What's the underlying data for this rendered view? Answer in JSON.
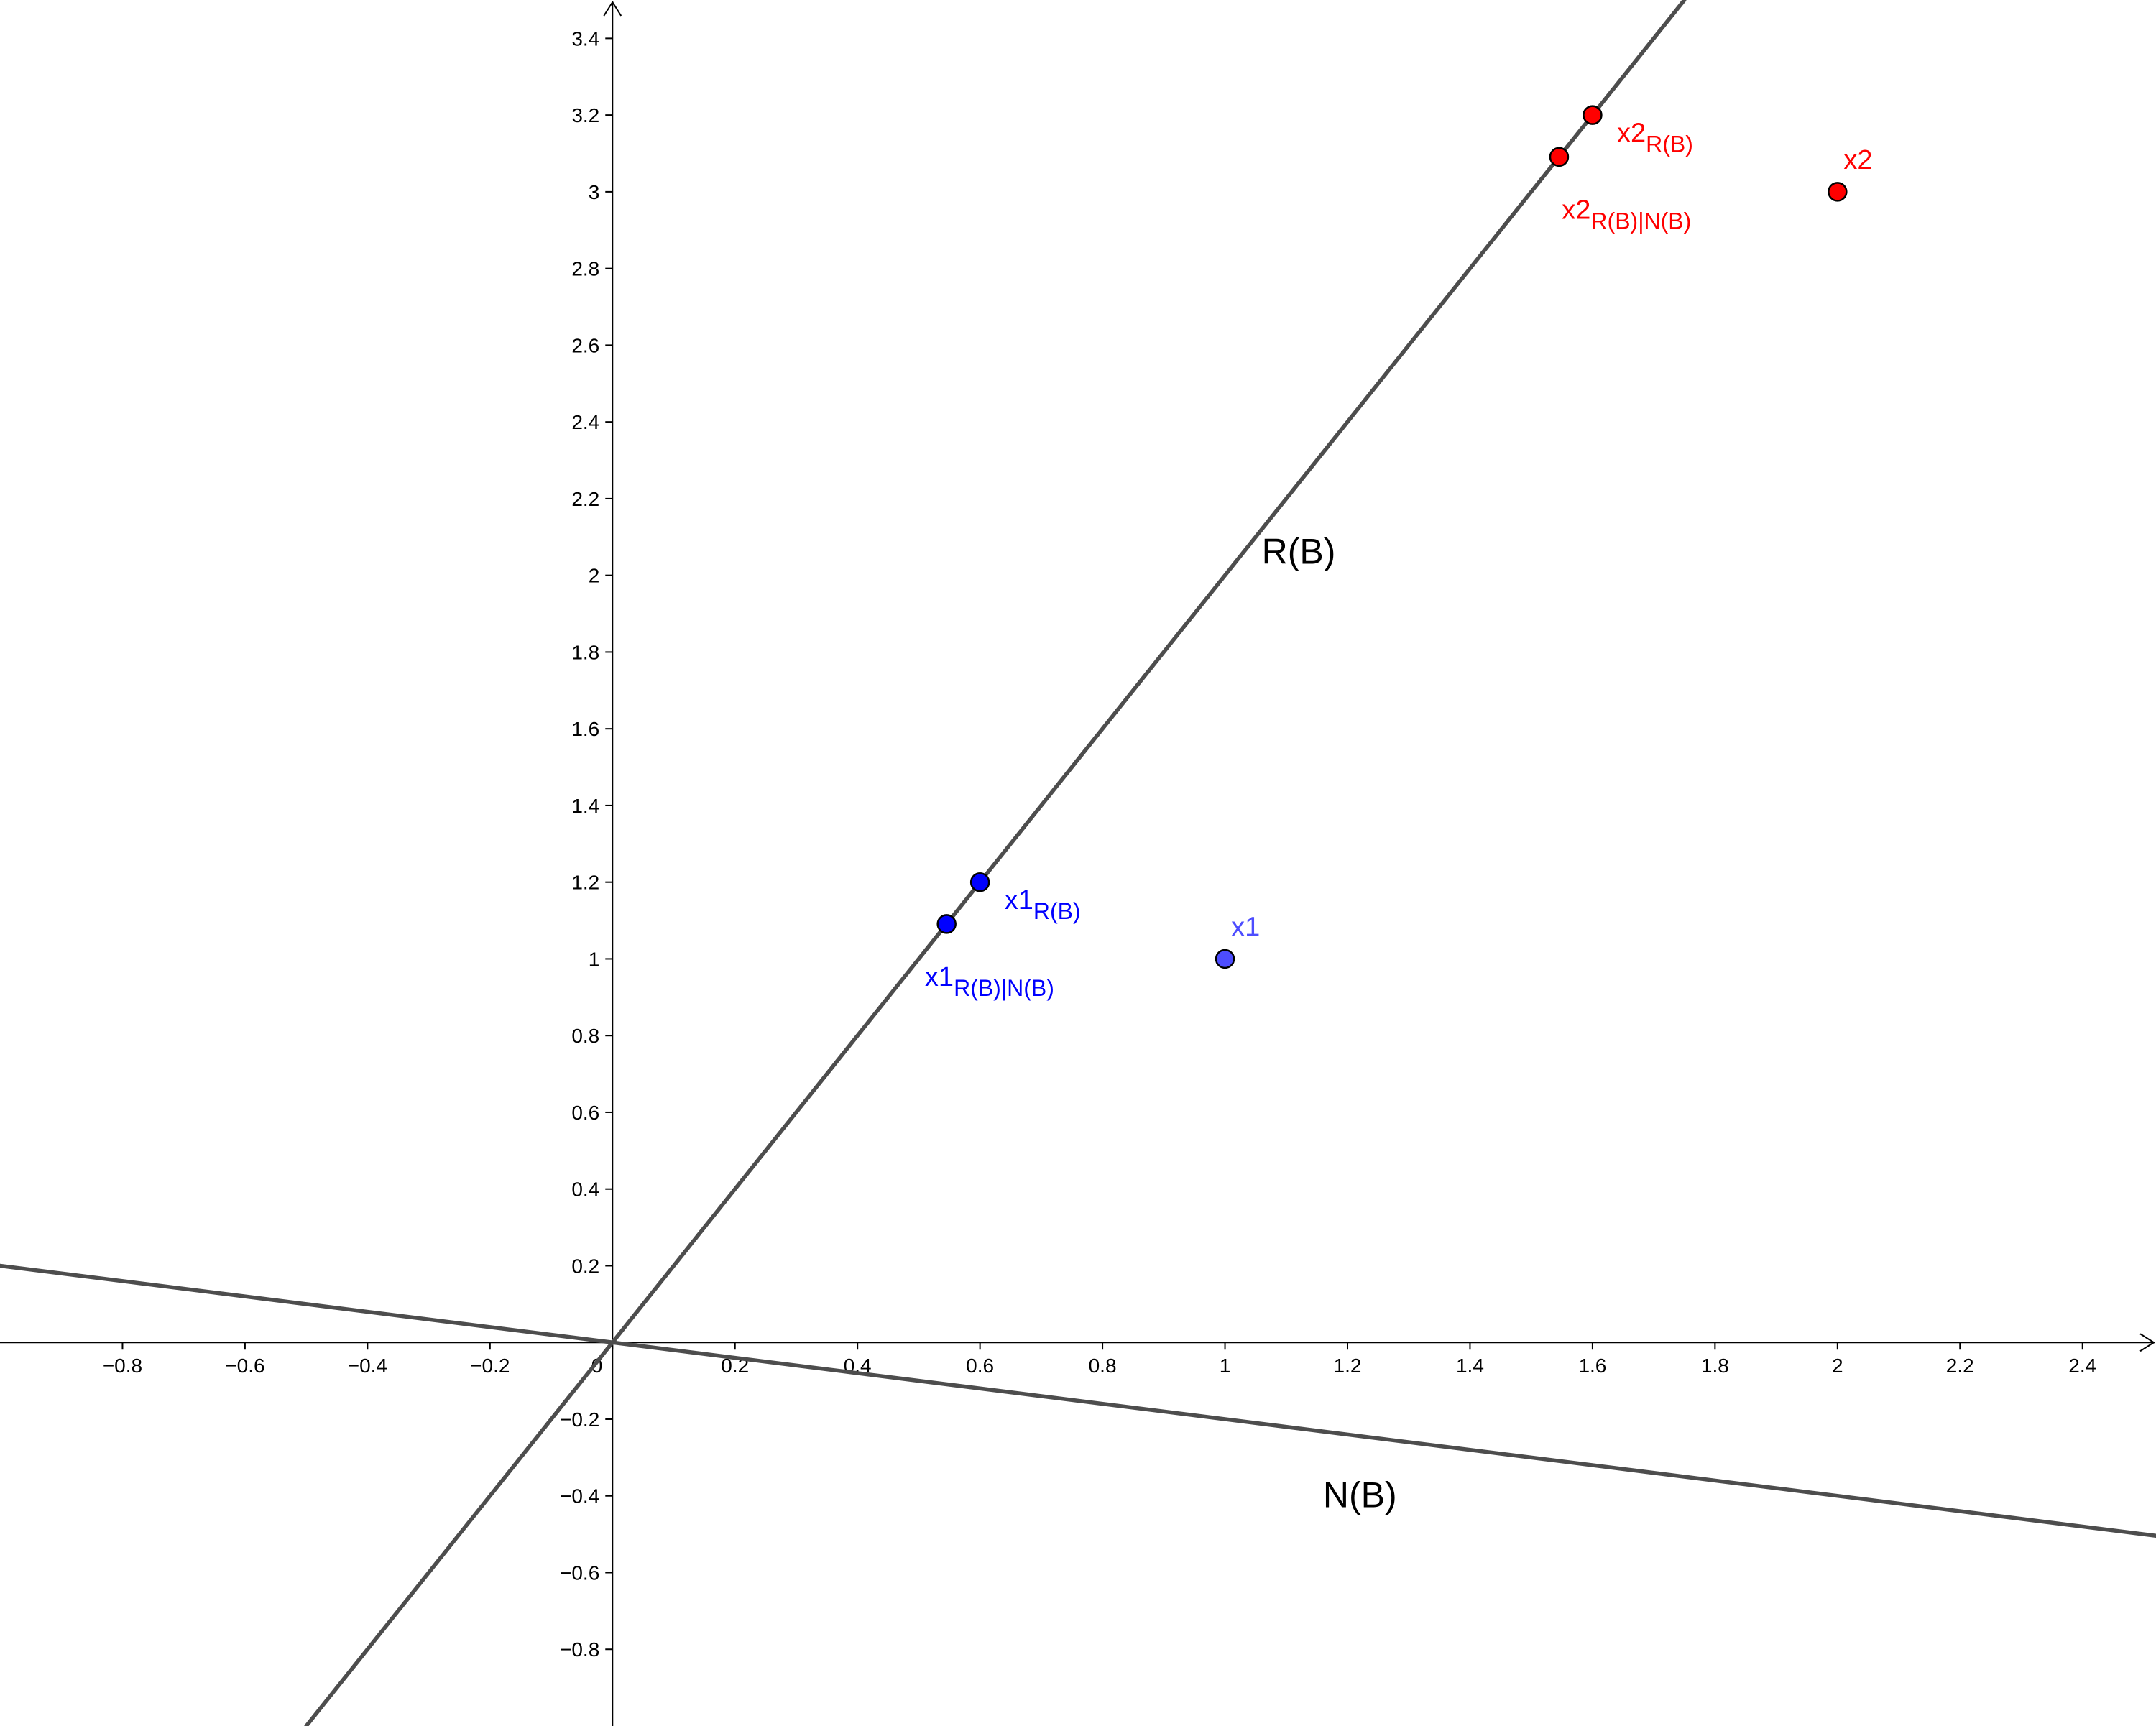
{
  "chart_data": {
    "type": "scatter",
    "title": "",
    "xlabel": "",
    "ylabel": "",
    "xlim": [
      -1,
      2.52
    ],
    "ylim": [
      -1,
      3.5
    ],
    "grid": false,
    "x_ticks": [
      -0.8,
      -0.6,
      -0.4,
      -0.2,
      0,
      0.2,
      0.4,
      0.6,
      0.8,
      1,
      1.2,
      1.4,
      1.6,
      1.8,
      2,
      2.2,
      2.4
    ],
    "x_tick_labels": [
      "−0.8",
      "−0.6",
      "−0.4",
      "−0.2",
      "0",
      "0.2",
      "0.4",
      "0.6",
      "0.8",
      "1",
      "1.2",
      "1.4",
      "1.6",
      "1.8",
      "2",
      "2.2",
      "2.4"
    ],
    "y_ticks": [
      -0.8,
      -0.6,
      -0.4,
      -0.2,
      0.2,
      0.4,
      0.6,
      0.8,
      1,
      1.2,
      1.4,
      1.6,
      1.8,
      2,
      2.2,
      2.4,
      2.6,
      2.8,
      3,
      3.2,
      3.4
    ],
    "y_tick_labels": [
      "−0.8",
      "−0.6",
      "−0.4",
      "−0.2",
      "0.2",
      "0.4",
      "0.6",
      "0.8",
      "1",
      "1.2",
      "1.4",
      "1.6",
      "1.8",
      "2",
      "2.2",
      "2.4",
      "2.6",
      "2.8",
      "3",
      "3.2",
      "3.4"
    ],
    "lines": [
      {
        "name": "R(B)",
        "slope": 2,
        "intercept": 0,
        "color": "#4d4d4d",
        "label_at": [
          1.06,
          2.03
        ]
      },
      {
        "name": "N(B)",
        "slope": -0.2,
        "intercept": 0,
        "color": "#4d4d4d",
        "label_at": [
          1.16,
          -0.43
        ]
      }
    ],
    "points": [
      {
        "id": "x1",
        "x": 1,
        "y": 1,
        "label": "x1",
        "sub": "",
        "color": "#4d4dff",
        "label_at": [
          1.01,
          1.06
        ]
      },
      {
        "id": "x1-rb",
        "x": 0.6,
        "y": 1.2,
        "label": "x1",
        "sub": "R(B)",
        "color": "#0000ff",
        "label_at": [
          0.64,
          1.13
        ]
      },
      {
        "id": "x1-rbnb",
        "x": 0.5455,
        "y": 1.0909,
        "label": "x1",
        "sub": "R(B)|N(B)",
        "color": "#0000ff",
        "label_at": [
          0.51,
          0.93
        ]
      },
      {
        "id": "x2",
        "x": 2,
        "y": 3,
        "label": "x2",
        "sub": "",
        "color": "#ff0000",
        "label_at": [
          2.01,
          3.06
        ]
      },
      {
        "id": "x2-rb",
        "x": 1.6,
        "y": 3.2,
        "label": "x2",
        "sub": "R(B)",
        "color": "#ff0000",
        "label_at": [
          1.64,
          3.13
        ]
      },
      {
        "id": "x2-rbnb",
        "x": 1.5455,
        "y": 3.0909,
        "label": "x2",
        "sub": "R(B)|N(B)",
        "color": "#ff0000",
        "label_at": [
          1.55,
          2.93
        ]
      }
    ]
  }
}
